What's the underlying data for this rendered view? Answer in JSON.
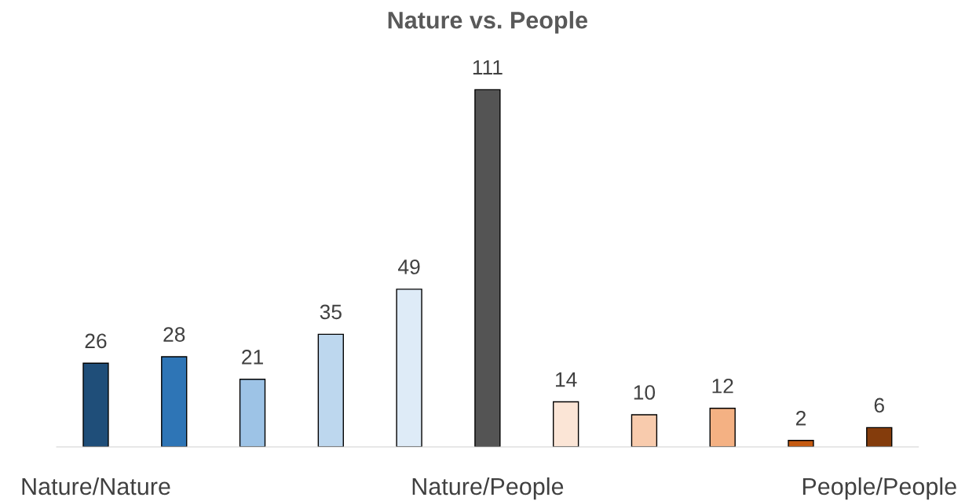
{
  "chart_data": {
    "type": "bar",
    "title": "Nature vs. People",
    "categories": [
      "Nature/Nature",
      null,
      null,
      null,
      null,
      "Nature/People",
      null,
      null,
      null,
      null,
      "People/People"
    ],
    "values": [
      26,
      28,
      21,
      35,
      49,
      111,
      14,
      10,
      12,
      2,
      6
    ],
    "colors": [
      "#1f4e79",
      "#2e75b6",
      "#9dc3e6",
      "#bdd7ee",
      "#deebf7",
      "#545454",
      "#fbe5d6",
      "#f8cbad",
      "#f4b183",
      "#c55a11",
      "#843c0c"
    ],
    "data_labels": true,
    "grid": false,
    "legend": false
  }
}
